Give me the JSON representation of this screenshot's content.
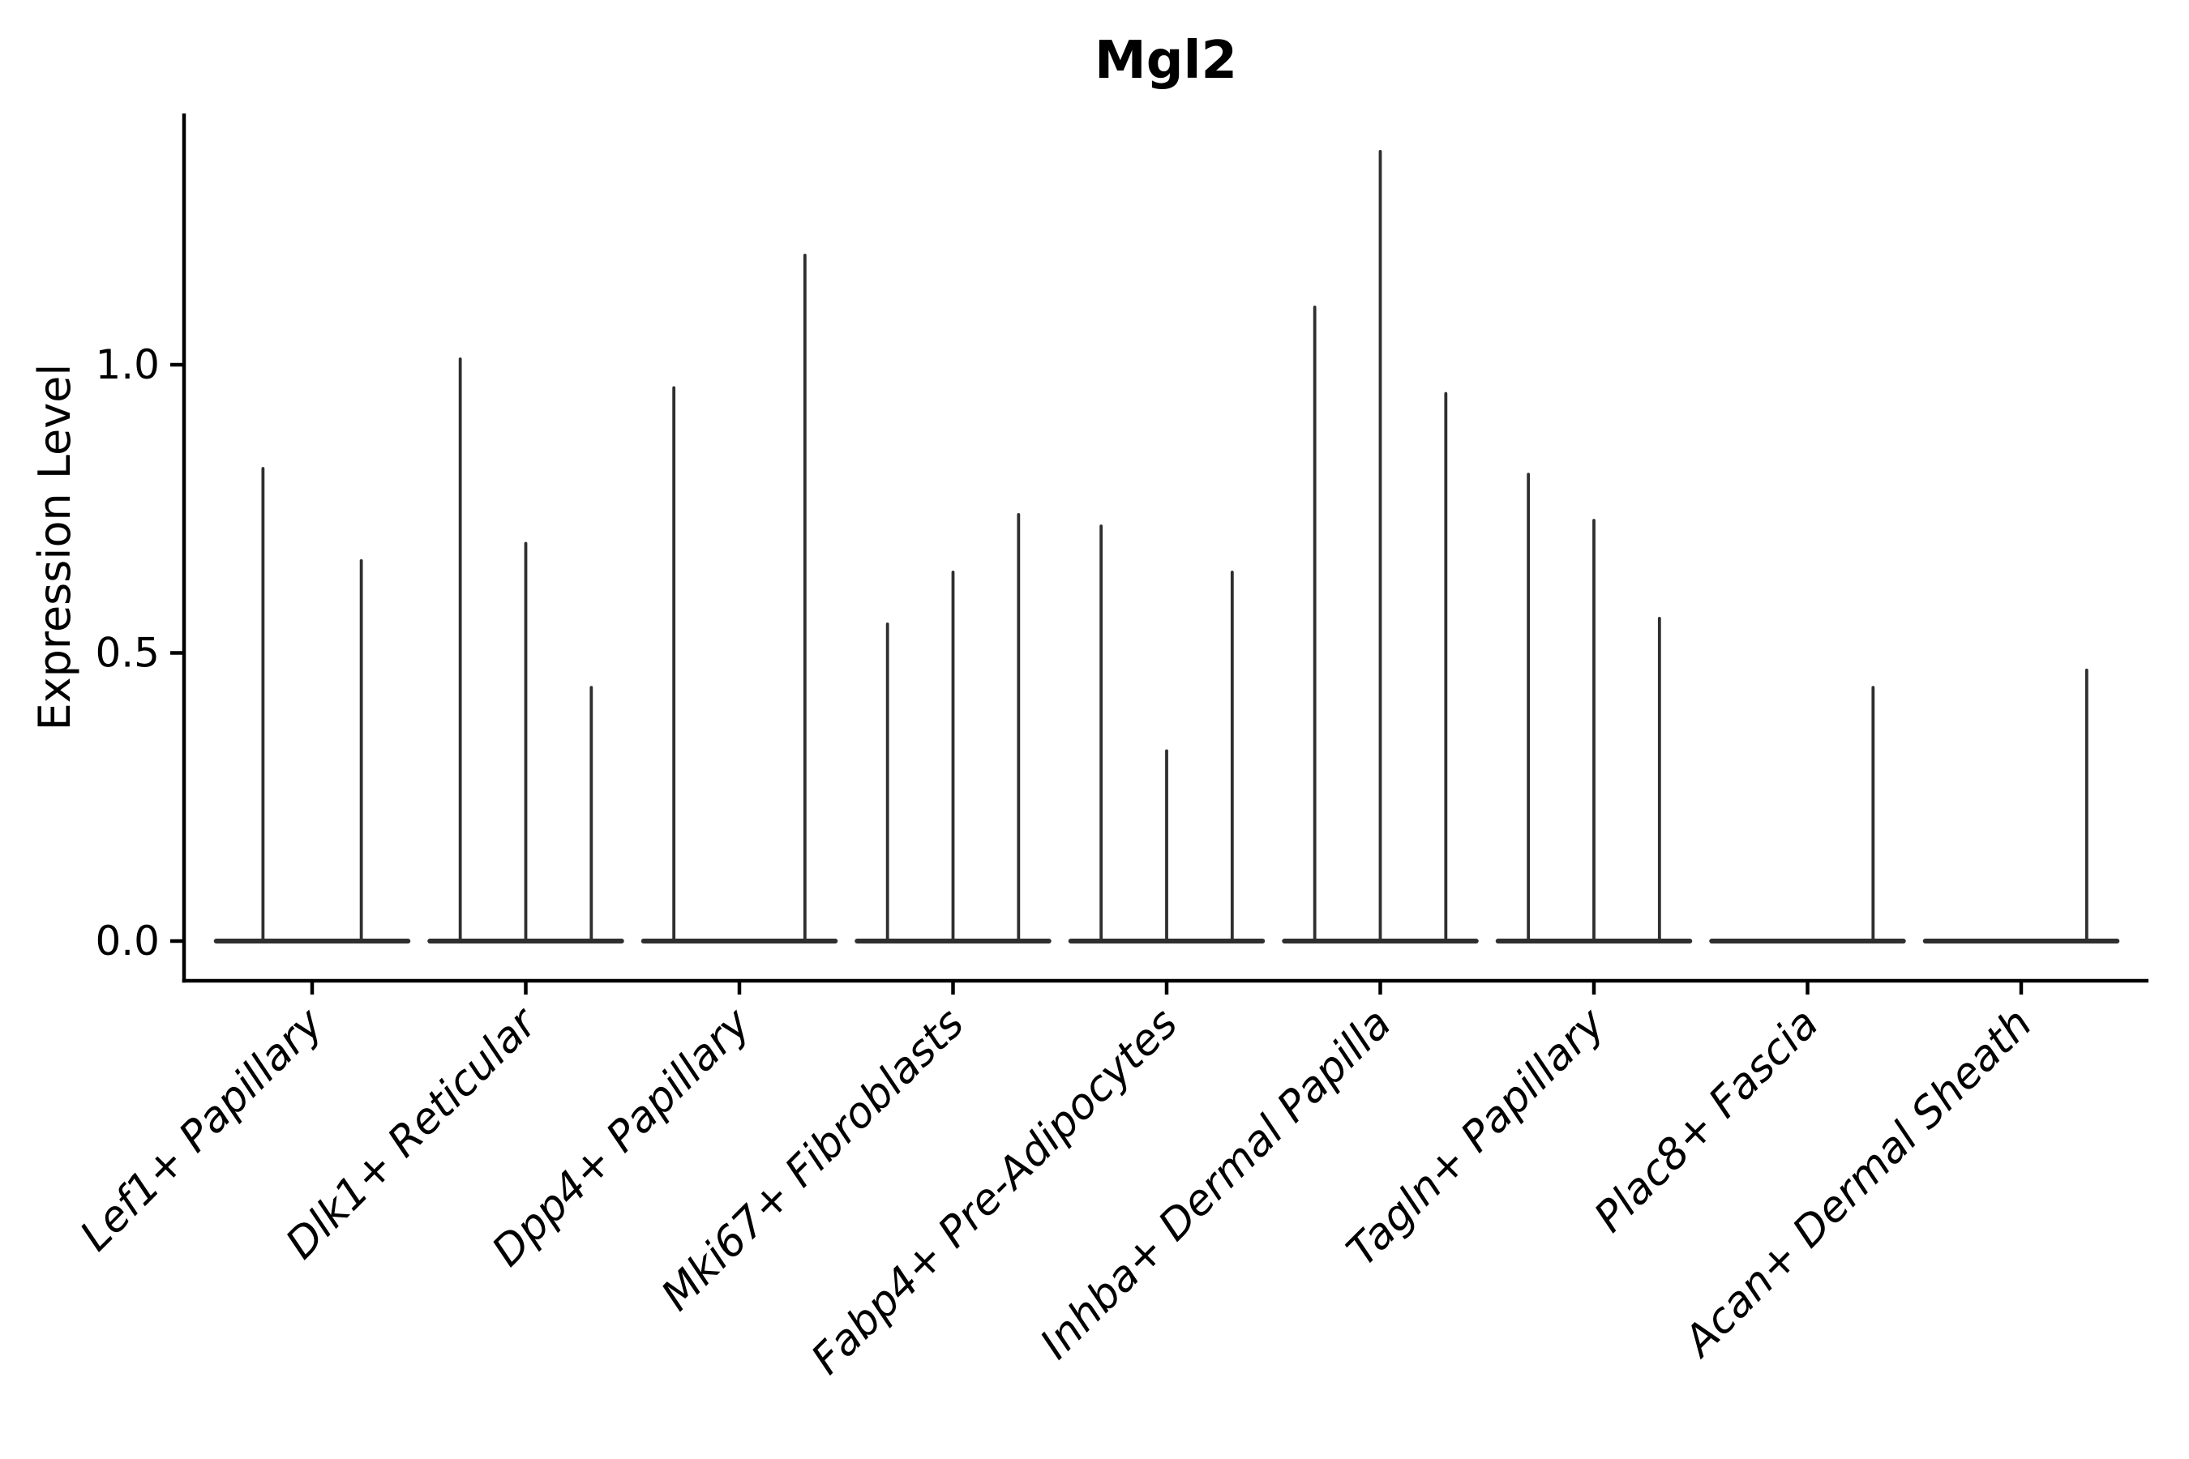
{
  "page": {
    "background": "#ffffff"
  },
  "chart_data": {
    "type": "violin",
    "title": "Mgl2",
    "ylabel": "Expression Level",
    "xlabel": "",
    "ylim": [
      -0.07,
      1.43
    ],
    "grid": false,
    "legend": "none",
    "yticks": {
      "values": [
        0.0,
        0.5,
        1.0
      ],
      "labels": [
        "0.0",
        "0.5",
        "1.0"
      ]
    },
    "categories": [
      "Lef1+ Papillary",
      "Dlk1+ Reticular",
      "Dpp4+ Papillary",
      "Mki67+ Fibroblasts",
      "Fabp4+ Pre-Adipocytes",
      "Inhba+ Dermal Papilla",
      "Tagln+ Papillary",
      "Plac8+ Fascia",
      "Acan+ Dermal Sheath"
    ],
    "groups": [
      {
        "label": "Lef1+ Papillary",
        "violin_peaks": [
          0.82,
          0.66
        ]
      },
      {
        "label": "Dlk1+ Reticular",
        "violin_peaks": [
          1.01,
          0.69,
          0.44
        ]
      },
      {
        "label": "Dpp4+ Papillary",
        "violin_peaks": [
          0.96,
          0,
          1.19
        ]
      },
      {
        "label": "Mki67+ Fibroblasts",
        "violin_peaks": [
          0.55,
          0.64,
          0.74
        ]
      },
      {
        "label": "Fabp4+ Pre-Adipocytes",
        "violin_peaks": [
          0.72,
          0.33,
          0.64
        ]
      },
      {
        "label": "Inhba+ Dermal Papilla",
        "violin_peaks": [
          1.1,
          1.37,
          0.95
        ]
      },
      {
        "label": "Tagln+ Papillary",
        "violin_peaks": [
          0.81,
          0.73,
          0.56
        ]
      },
      {
        "label": "Plac8+ Fascia",
        "violin_peaks": [
          0,
          0,
          0.44
        ]
      },
      {
        "label": "Acan+ Dermal Sheath",
        "violin_peaks": [
          0,
          0,
          0.47
        ]
      }
    ],
    "colors": {
      "violin_stroke": "#2f2f2f",
      "axis": "#000000",
      "text": "#000000",
      "background": "#ffffff"
    }
  }
}
